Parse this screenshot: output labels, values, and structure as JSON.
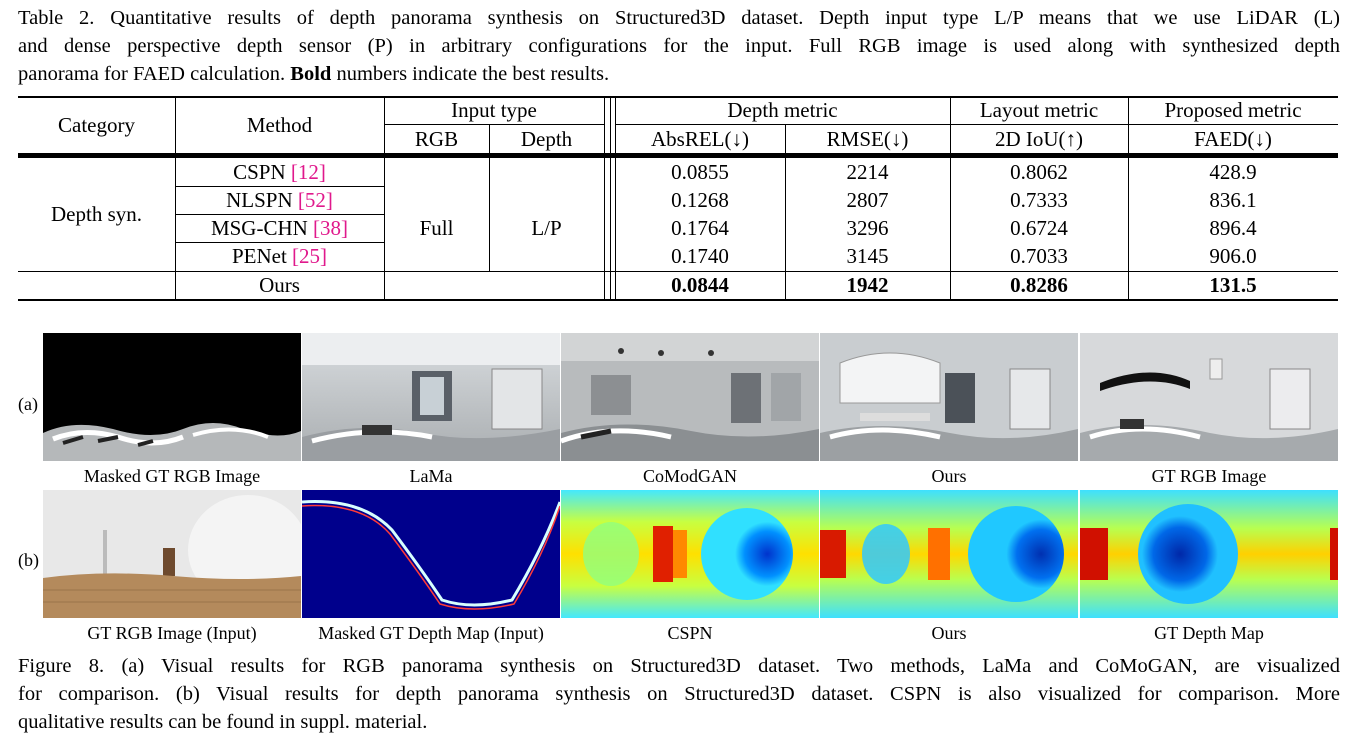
{
  "table_caption": {
    "lines": [
      "Table 2. Quantitative results of depth panorama synthesis on Structured3D dataset. Depth input type L/P means that we use LiDAR (L)",
      "and dense perspective depth sensor (P) in arbitrary configurations for the input. Full RGB image is used along with synthesized depth"
    ],
    "line3_pre": "panorama for FAED calculation. ",
    "line3_bold": "Bold",
    "line3_post": " numbers indicate the best results."
  },
  "table": {
    "header": {
      "category": "Category",
      "method": "Method",
      "input_type": "Input type",
      "rgb": "RGB",
      "depth": "Depth",
      "depth_metric": "Depth metric",
      "absrel": "AbsREL(↓)",
      "rmse": "RMSE(↓)",
      "layout_metric": "Layout metric",
      "iou": "2D IoU(↑)",
      "proposed_metric": "Proposed metric",
      "faed": "FAED(↓)"
    },
    "category_value": "Depth syn.",
    "input_rgb_value": "Full",
    "input_depth_value": "L/P",
    "rows": [
      {
        "method": "CSPN ",
        "cite": "[12]",
        "absrel": "0.0855",
        "rmse": "2214",
        "iou": "0.8062",
        "faed": "428.9"
      },
      {
        "method": "NLSPN ",
        "cite": "[52]",
        "absrel": "0.1268",
        "rmse": "2807",
        "iou": "0.7333",
        "faed": "836.1"
      },
      {
        "method": "MSG-CHN ",
        "cite": "[38]",
        "absrel": "0.1764",
        "rmse": "3296",
        "iou": "0.6724",
        "faed": "896.4"
      },
      {
        "method": "PENet ",
        "cite": "[25]",
        "absrel": "0.1740",
        "rmse": "3145",
        "iou": "0.7033",
        "faed": "906.0"
      }
    ],
    "ours": {
      "method": "Ours",
      "absrel": "0.0844",
      "rmse": "1942",
      "iou": "0.8286",
      "faed": "131.5"
    }
  },
  "figure": {
    "row_a_label": "(a)",
    "row_b_label": "(b)",
    "row_a_captions": [
      "Masked GT RGB Image",
      "LaMa",
      "CoModGAN",
      "Ours",
      "GT RGB Image"
    ],
    "row_b_captions": [
      "GT RGB Image (Input)",
      "Masked GT Depth Map (Input)",
      "CSPN",
      "Ours",
      "GT Depth Map"
    ]
  },
  "figure_caption": {
    "lines": [
      "Figure 8. (a) Visual results for RGB panorama synthesis on Structured3D dataset. Two methods, LaMa and CoMoGAN, are visualized",
      "for comparison. (b) Visual results for depth panorama synthesis on Structured3D dataset. CSPN is also visualized for comparison. More",
      "qualitative results can be found in suppl. material."
    ]
  }
}
